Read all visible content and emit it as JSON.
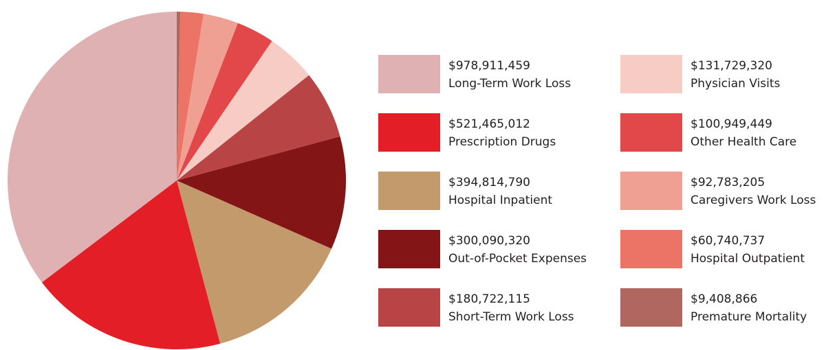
{
  "chart_data": {
    "type": "pie",
    "categories": [
      "Long-Term Work Loss",
      "Prescription Drugs",
      "Hospital Inpatient",
      "Out-of-Pocket Expenses",
      "Short-Term Work Loss",
      "Physician Visits",
      "Other Health Care",
      "Caregivers Work Loss",
      "Hospital Outpatient",
      "Premature Mortality"
    ],
    "values": [
      978911459,
      521465012,
      394814790,
      300090320,
      180722115,
      131729320,
      100949449,
      92783205,
      60740737,
      9408866
    ],
    "value_labels": [
      "$978,911,459",
      "$521,465,012",
      "$394,814,790",
      "$300,090,320",
      "$180,722,115",
      "$131,729,320",
      "$100,949,449",
      "$92,783,205",
      "$60,740,737",
      "$9,408,866"
    ],
    "colors": [
      "#e0b1b3",
      "#e31e26",
      "#c39a6b",
      "#841517",
      "#b84445",
      "#f7ccc4",
      "#e2474a",
      "#efa093",
      "#ec7467",
      "#b0675f"
    ],
    "direction": "counterclockwise"
  }
}
